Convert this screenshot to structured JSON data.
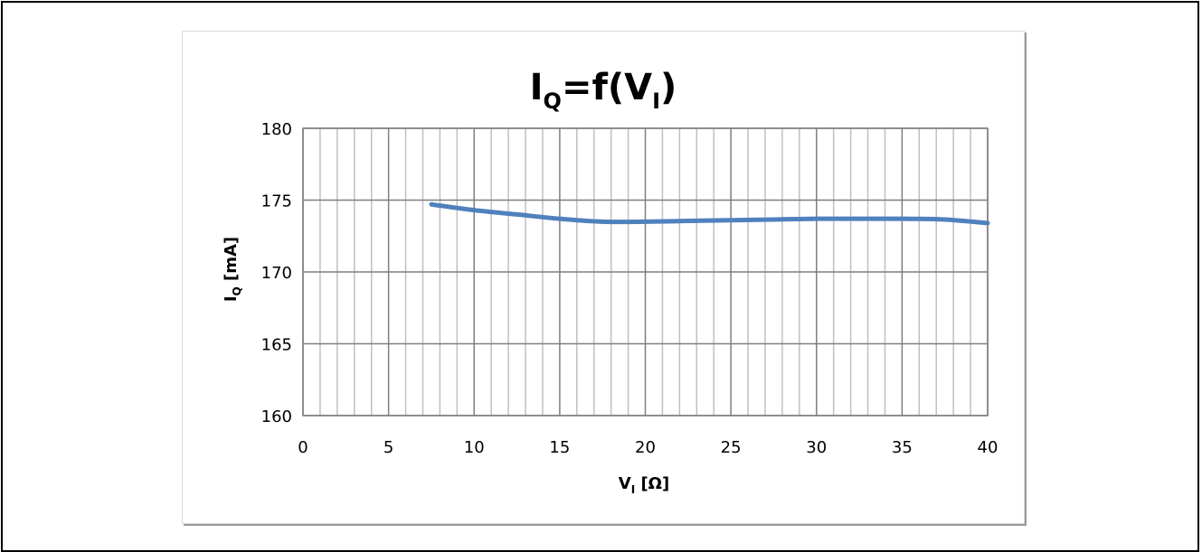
{
  "chart_data": {
    "type": "line",
    "title": {
      "main": "I",
      "sub": "Q",
      "mid": "=f(V",
      "sub2": "I",
      "end": ")"
    },
    "xlabel": {
      "main": "V",
      "sub": "I",
      "rest": " [Ω]"
    },
    "ylabel": {
      "main": "I",
      "sub": "Q",
      "rest": " [mA]"
    },
    "xlim": [
      0,
      40
    ],
    "ylim": [
      160,
      180
    ],
    "x_major_ticks": [
      0,
      5,
      10,
      15,
      20,
      25,
      30,
      35,
      40
    ],
    "x_minor_step": 1,
    "y_ticks": [
      160,
      165,
      170,
      175,
      180
    ],
    "grid": true,
    "legend": "none",
    "series": [
      {
        "color": "#4f81bd",
        "x": [
          7.5,
          10,
          12.5,
          15,
          17.5,
          20,
          22.5,
          25,
          27.5,
          30,
          32.5,
          35,
          37.5,
          40
        ],
        "y": [
          174.7,
          174.3,
          174.0,
          173.7,
          173.5,
          173.5,
          173.55,
          173.6,
          173.65,
          173.7,
          173.7,
          173.7,
          173.65,
          173.4
        ]
      }
    ]
  }
}
